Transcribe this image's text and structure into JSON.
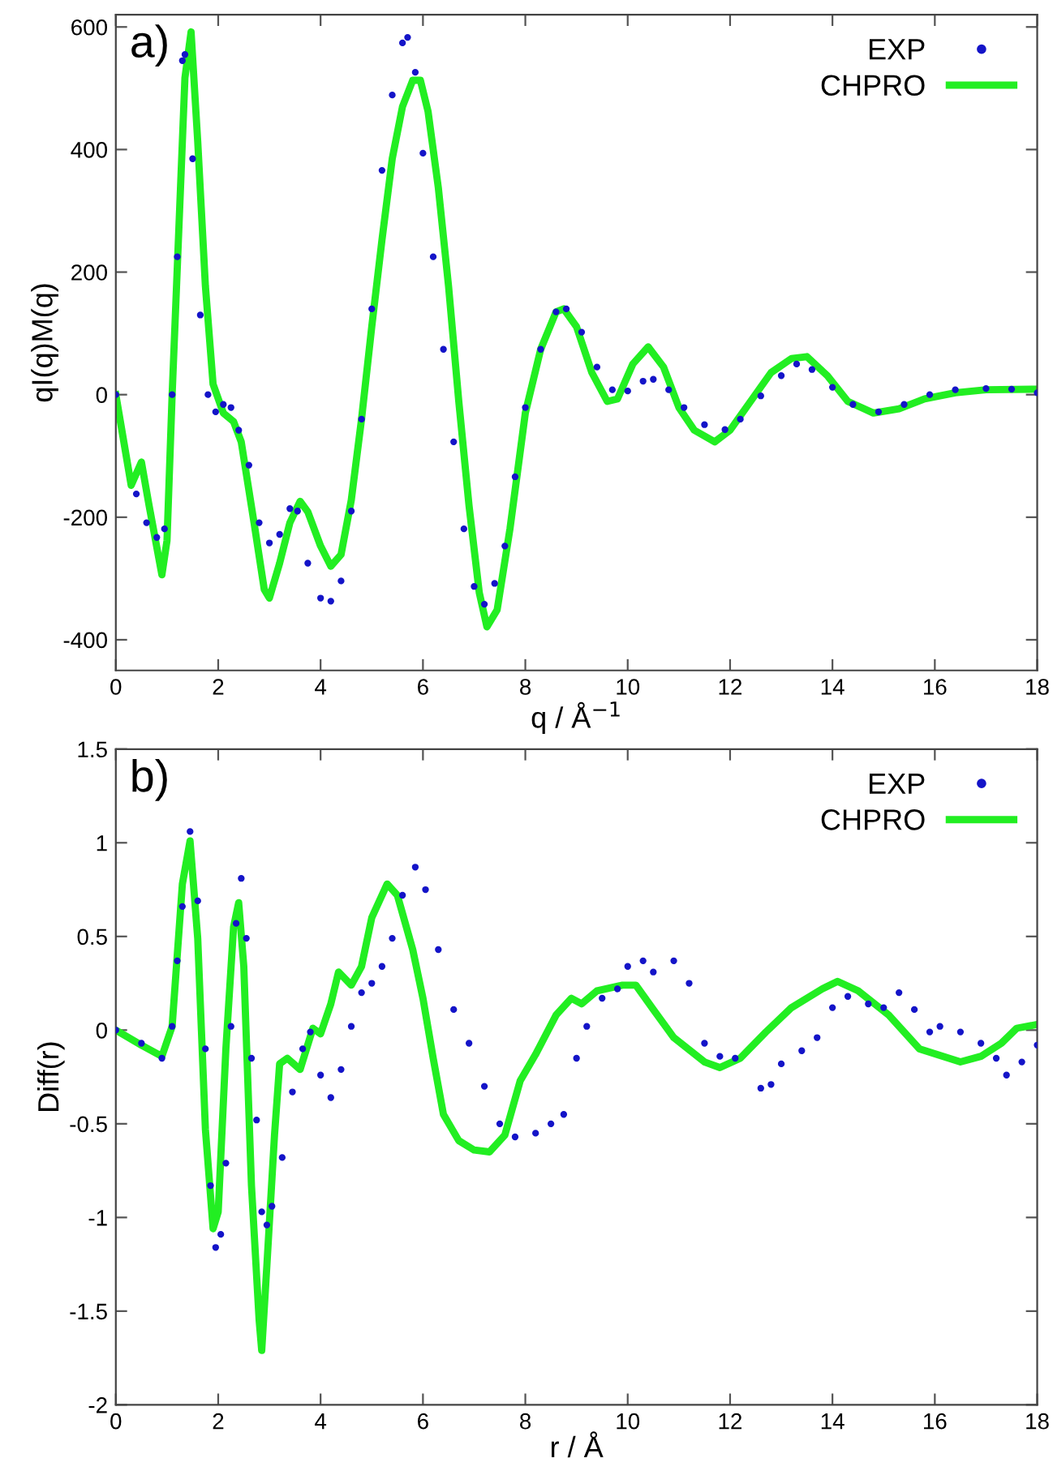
{
  "chart_data": [
    {
      "type": "line",
      "xlabel": "q / Å$^{−1}$",
      "ylabel": "qI(q)M(q)",
      "annotations": [
        "a)"
      ],
      "xlim": [
        0,
        18
      ],
      "ylim": [
        -450,
        620
      ],
      "xticks": [
        0,
        2,
        4,
        6,
        8,
        10,
        12,
        14,
        16,
        18
      ],
      "yticks": [
        -400,
        -200,
        0,
        200,
        400,
        600
      ],
      "grid": false,
      "legend": "top right",
      "series": [
        {
          "name": "EXP",
          "type": "scatter",
          "marker": "circle",
          "color": "#1414c8",
          "x": [
            0,
            0.4,
            0.6,
            0.8,
            0.95,
            1.1,
            1.2,
            1.3,
            1.35,
            1.5,
            1.65,
            1.8,
            1.95,
            2.1,
            2.25,
            2.4,
            2.6,
            2.8,
            3.0,
            3.2,
            3.4,
            3.55,
            3.75,
            4.0,
            4.2,
            4.4,
            4.6,
            4.8,
            5.0,
            5.2,
            5.4,
            5.6,
            5.7,
            5.85,
            6.0,
            6.2,
            6.4,
            6.6,
            6.8,
            7.0,
            7.2,
            7.4,
            7.6,
            7.8,
            8.0,
            8.3,
            8.6,
            8.8,
            9.1,
            9.4,
            9.7,
            10.0,
            10.3,
            10.5,
            10.8,
            11.1,
            11.5,
            11.9,
            12.2,
            12.6,
            13.0,
            13.3,
            13.6,
            14.0,
            14.4,
            14.9,
            15.4,
            15.9,
            16.4,
            17.0,
            17.5,
            18
          ],
          "values": [
            0,
            -162,
            -209,
            -233,
            -219,
            0,
            225,
            545,
            555,
            385,
            130,
            0,
            -28,
            -16,
            -21,
            -58,
            -115,
            -209,
            -242,
            -228,
            -186,
            -190,
            -275,
            -332,
            -337,
            -304,
            -190,
            -40,
            140,
            366,
            489,
            574,
            583,
            526,
            394,
            225,
            74,
            -77,
            -219,
            -313,
            -342,
            -308,
            -247,
            -134,
            -21,
            74,
            135,
            140,
            102,
            45,
            8,
            6,
            22,
            25,
            8,
            -21,
            -49,
            -57,
            -40,
            -2,
            31,
            50,
            41,
            12,
            -16,
            -28,
            -16,
            0,
            8,
            10,
            9,
            3
          ]
        },
        {
          "name": "CHPRO",
          "line_style": "solid",
          "color": "#22ee22",
          "x": [
            0,
            0.3,
            0.5,
            0.65,
            0.9,
            1.0,
            1.1,
            1.2,
            1.35,
            1.47,
            1.6,
            1.75,
            1.9,
            2.1,
            2.3,
            2.45,
            2.7,
            2.9,
            3.0,
            3.2,
            3.4,
            3.6,
            3.75,
            4.0,
            4.2,
            4.4,
            4.6,
            4.8,
            5.0,
            5.2,
            5.4,
            5.6,
            5.8,
            5.95,
            6.1,
            6.3,
            6.5,
            6.7,
            6.9,
            7.1,
            7.25,
            7.45,
            7.7,
            8.0,
            8.3,
            8.6,
            8.75,
            9.0,
            9.3,
            9.6,
            9.8,
            10.1,
            10.4,
            10.7,
            11.0,
            11.3,
            11.7,
            12.0,
            12.4,
            12.8,
            13.2,
            13.5,
            13.9,
            14.3,
            14.8,
            15.3,
            15.8,
            16.4,
            17.0,
            18
          ],
          "values": [
            0,
            -148,
            -110,
            -181,
            -294,
            -238,
            0,
            206,
            517,
            592,
            413,
            177,
            17,
            -30,
            -44,
            -77,
            -209,
            -318,
            -332,
            -275,
            -209,
            -174,
            -191,
            -247,
            -280,
            -261,
            -172,
            -40,
            111,
            253,
            385,
            470,
            513,
            513,
            462,
            338,
            177,
            -11,
            -181,
            -323,
            -379,
            -351,
            -219,
            -30,
            74,
            135,
            140,
            111,
            36,
            -11,
            -7,
            50,
            78,
            45,
            -21,
            -58,
            -77,
            -58,
            -11,
            36,
            59,
            62,
            31,
            -11,
            -30,
            -23,
            -7,
            3,
            8,
            9
          ]
        }
      ]
    },
    {
      "type": "line",
      "xlabel": "r / Å",
      "ylabel": "Diff(r)",
      "annotations": [
        "b)"
      ],
      "xlim": [
        0,
        18
      ],
      "ylim": [
        -2,
        1.5
      ],
      "xticks": [
        0,
        2,
        4,
        6,
        8,
        10,
        12,
        14,
        16,
        18
      ],
      "yticks": [
        -2,
        -1.5,
        -1,
        -0.5,
        0,
        0.5,
        1,
        1.5
      ],
      "grid": false,
      "legend": "top right",
      "series": [
        {
          "name": "EXP",
          "type": "scatter",
          "marker": "circle",
          "color": "#1414c8",
          "x": [
            0,
            0.5,
            0.9,
            1.1,
            1.2,
            1.3,
            1.45,
            1.6,
            1.75,
            1.85,
            1.95,
            2.05,
            2.15,
            2.25,
            2.35,
            2.45,
            2.55,
            2.65,
            2.75,
            2.85,
            2.95,
            3.05,
            3.25,
            3.45,
            3.65,
            3.8,
            4.0,
            4.2,
            4.4,
            4.6,
            4.8,
            5.0,
            5.2,
            5.4,
            5.6,
            5.85,
            6.05,
            6.3,
            6.6,
            6.9,
            7.2,
            7.5,
            7.8,
            8.2,
            8.5,
            8.75,
            9.0,
            9.2,
            9.5,
            9.8,
            10.0,
            10.3,
            10.5,
            10.9,
            11.2,
            11.5,
            11.8,
            12.1,
            12.6,
            12.8,
            13.0,
            13.4,
            13.7,
            14.0,
            14.3,
            14.7,
            15.0,
            15.3,
            15.6,
            15.9,
            16.1,
            16.5,
            16.9,
            17.2,
            17.4,
            17.7,
            18
          ],
          "values": [
            0,
            -0.07,
            -0.15,
            0.02,
            0.37,
            0.66,
            1.06,
            0.69,
            -0.1,
            -0.83,
            -1.16,
            -1.09,
            -0.71,
            0.02,
            0.57,
            0.81,
            0.49,
            -0.15,
            -0.48,
            -0.97,
            -1.04,
            -0.94,
            -0.68,
            -0.33,
            -0.1,
            -0.01,
            -0.24,
            -0.36,
            -0.21,
            0.02,
            0.2,
            0.25,
            0.34,
            0.49,
            0.72,
            0.87,
            0.75,
            0.43,
            0.11,
            -0.07,
            -0.3,
            -0.5,
            -0.57,
            -0.55,
            -0.5,
            -0.45,
            -0.15,
            0.02,
            0.17,
            0.22,
            0.34,
            0.37,
            0.31,
            0.37,
            0.25,
            -0.07,
            -0.14,
            -0.15,
            -0.31,
            -0.29,
            -0.18,
            -0.11,
            -0.04,
            0.12,
            0.18,
            0.14,
            0.12,
            0.2,
            0.11,
            -0.01,
            0.02,
            -0.01,
            -0.07,
            -0.15,
            -0.24,
            -0.17,
            -0.08
          ]
        },
        {
          "name": "CHPRO",
          "line_style": "solid",
          "color": "#22ee22",
          "x": [
            0,
            0.5,
            0.9,
            1.1,
            1.3,
            1.45,
            1.6,
            1.75,
            1.9,
            2.0,
            2.15,
            2.3,
            2.4,
            2.5,
            2.65,
            2.8,
            2.85,
            2.95,
            3.1,
            3.2,
            3.35,
            3.6,
            3.85,
            4.0,
            4.2,
            4.35,
            4.6,
            4.8,
            5.0,
            5.3,
            5.5,
            5.8,
            6.0,
            6.2,
            6.4,
            6.7,
            7.0,
            7.3,
            7.6,
            7.9,
            8.2,
            8.6,
            8.9,
            9.1,
            9.4,
            9.9,
            10.16,
            10.5,
            10.9,
            11.5,
            11.8,
            12.2,
            12.7,
            13.2,
            13.8,
            14.1,
            14.5,
            15.1,
            15.7,
            16.5,
            16.9,
            17.3,
            17.6,
            18
          ],
          "values": [
            0,
            -0.08,
            -0.14,
            0.02,
            0.78,
            1.01,
            0.49,
            -0.53,
            -1.06,
            -0.97,
            -0.1,
            0.55,
            0.68,
            0.34,
            -0.83,
            -1.55,
            -1.71,
            -1.26,
            -0.56,
            -0.18,
            -0.15,
            -0.21,
            0.01,
            -0.02,
            0.14,
            0.31,
            0.24,
            0.34,
            0.6,
            0.78,
            0.72,
            0.43,
            0.17,
            -0.15,
            -0.45,
            -0.59,
            -0.64,
            -0.65,
            -0.56,
            -0.27,
            -0.13,
            0.08,
            0.17,
            0.14,
            0.21,
            0.24,
            0.24,
            0.11,
            -0.04,
            -0.17,
            -0.2,
            -0.15,
            -0.01,
            0.12,
            0.22,
            0.26,
            0.21,
            0.08,
            -0.1,
            -0.17,
            -0.14,
            -0.07,
            0.01,
            0.03
          ]
        }
      ]
    }
  ]
}
